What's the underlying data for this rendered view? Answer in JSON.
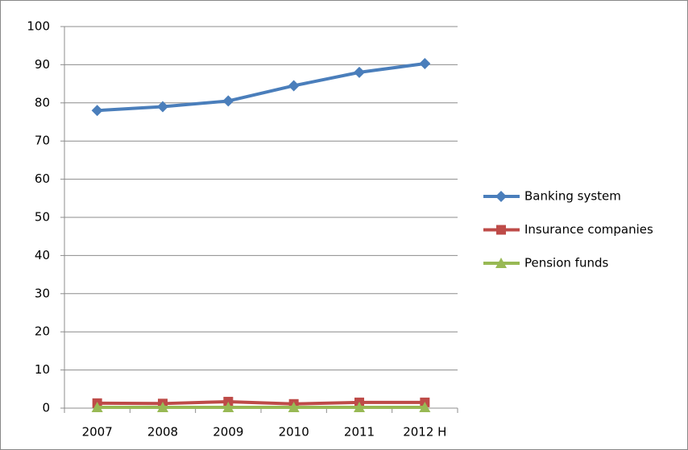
{
  "chart_data": {
    "type": "line",
    "categories": [
      "2007",
      "2008",
      "2009",
      "2010",
      "2011",
      "2012 H"
    ],
    "series": [
      {
        "name": "Banking system",
        "color": "#4a7ebb",
        "marker": "diamond",
        "values": [
          78,
          79,
          80.5,
          84.5,
          88,
          90.3
        ]
      },
      {
        "name": "Insurance companies",
        "color": "#be4b48",
        "marker": "square",
        "values": [
          1.3,
          1.2,
          1.7,
          1.1,
          1.5,
          1.5
        ]
      },
      {
        "name": "Pension funds",
        "color": "#98b954",
        "marker": "triangle",
        "values": [
          0.2,
          0.2,
          0.2,
          0.2,
          0.2,
          0.2
        ]
      }
    ],
    "ylim": [
      0,
      100
    ],
    "yticks": [
      0,
      10,
      20,
      30,
      40,
      50,
      60,
      70,
      80,
      90,
      100
    ],
    "grid": true,
    "legend": "right"
  }
}
